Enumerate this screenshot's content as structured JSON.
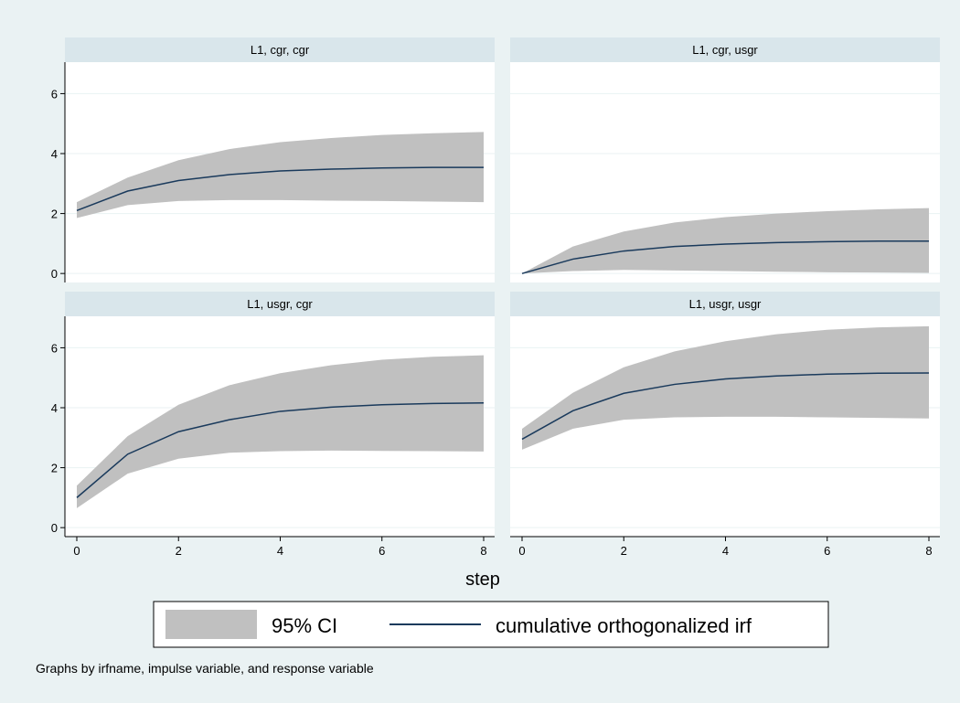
{
  "chart_data": {
    "type": "area",
    "x": [
      0,
      1,
      2,
      3,
      4,
      5,
      6,
      7,
      8
    ],
    "xlabel": "step",
    "ylabel": "",
    "xlim": [
      0,
      8
    ],
    "ylim": [
      0,
      6
    ],
    "x_ticks": [
      0,
      2,
      4,
      6,
      8
    ],
    "y_ticks": [
      0,
      2,
      4,
      6
    ],
    "grid": true,
    "legend": {
      "position": "bottom",
      "entries": [
        {
          "label": "95% CI",
          "kind": "band",
          "color": "#c0c0c0"
        },
        {
          "label": "cumulative orthogonalized irf",
          "kind": "line",
          "color": "#1a3a5c"
        }
      ]
    },
    "note": "Graphs by irfname, impulse variable, and response variable",
    "panels": [
      {
        "title": "L1, cgr, cgr",
        "irf": [
          2.1,
          2.75,
          3.1,
          3.3,
          3.42,
          3.48,
          3.52,
          3.54,
          3.54
        ],
        "lower": [
          1.85,
          2.28,
          2.42,
          2.45,
          2.45,
          2.43,
          2.42,
          2.4,
          2.38
        ],
        "upper": [
          2.38,
          3.2,
          3.78,
          4.15,
          4.38,
          4.52,
          4.62,
          4.68,
          4.72
        ]
      },
      {
        "title": "L1, cgr, usgr",
        "irf": [
          0.0,
          0.48,
          0.75,
          0.9,
          0.98,
          1.03,
          1.06,
          1.08,
          1.08
        ],
        "lower": [
          0.0,
          0.08,
          0.12,
          0.1,
          0.08,
          0.06,
          0.04,
          0.03,
          0.02
        ],
        "upper": [
          0.0,
          0.9,
          1.4,
          1.7,
          1.88,
          2.0,
          2.08,
          2.14,
          2.18
        ]
      },
      {
        "title": "L1, usgr, cgr",
        "irf": [
          1.0,
          2.45,
          3.2,
          3.6,
          3.88,
          4.02,
          4.1,
          4.14,
          4.16
        ],
        "lower": [
          0.65,
          1.8,
          2.3,
          2.5,
          2.55,
          2.57,
          2.56,
          2.55,
          2.54
        ],
        "upper": [
          1.4,
          3.05,
          4.1,
          4.75,
          5.15,
          5.42,
          5.6,
          5.7,
          5.75
        ]
      },
      {
        "title": "L1, usgr, usgr",
        "irf": [
          2.95,
          3.9,
          4.48,
          4.78,
          4.96,
          5.06,
          5.12,
          5.15,
          5.16
        ],
        "lower": [
          2.6,
          3.3,
          3.6,
          3.68,
          3.7,
          3.7,
          3.68,
          3.66,
          3.64
        ],
        "upper": [
          3.3,
          4.5,
          5.35,
          5.88,
          6.22,
          6.45,
          6.6,
          6.68,
          6.72
        ]
      }
    ]
  }
}
